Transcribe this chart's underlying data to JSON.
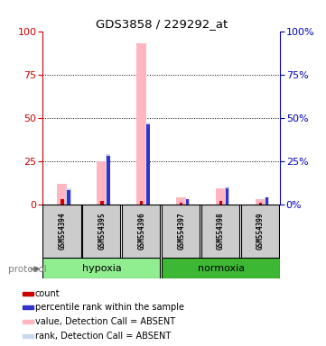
{
  "title": "GDS3858 / 229292_at",
  "samples": [
    "GSM554394",
    "GSM554395",
    "GSM554396",
    "GSM554397",
    "GSM554398",
    "GSM554399"
  ],
  "groups": [
    "hypoxia",
    "hypoxia",
    "hypoxia",
    "normoxia",
    "normoxia",
    "normoxia"
  ],
  "hypoxia_color": "#90EE90",
  "normoxia_color": "#3CB834",
  "value_bars": [
    12,
    25,
    93,
    4,
    9,
    3
  ],
  "rank_bars": [
    9,
    29,
    47,
    3,
    10,
    4
  ],
  "count_values": [
    3,
    2,
    2,
    1,
    2,
    1
  ],
  "percentile_values": [
    8,
    28,
    46,
    3,
    9,
    4
  ],
  "ylim": [
    0,
    100
  ],
  "ticks": [
    0,
    25,
    50,
    75,
    100
  ],
  "value_color": "#FFB6C1",
  "rank_color": "#C8D8F0",
  "count_color": "#CC0000",
  "percentile_color": "#3333CC",
  "bg_color": "#FFFFFF",
  "left_axis_color": "#CC0000",
  "right_axis_color": "#0000BB",
  "sample_box_color": "#CCCCCC",
  "protocol_label": "protocol",
  "legend_items": [
    {
      "label": "count",
      "color": "#CC0000"
    },
    {
      "label": "percentile rank within the sample",
      "color": "#3333CC"
    },
    {
      "label": "value, Detection Call = ABSENT",
      "color": "#FFB6C1"
    },
    {
      "label": "rank, Detection Call = ABSENT",
      "color": "#C8D8F0"
    }
  ]
}
